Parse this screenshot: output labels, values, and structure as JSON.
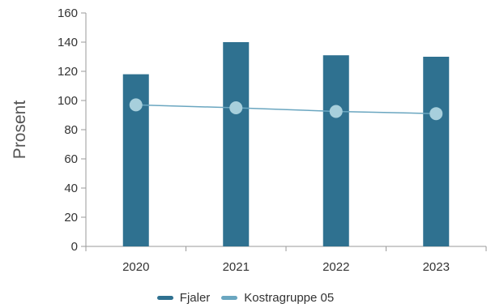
{
  "chart_data": {
    "type": "bar",
    "categories": [
      "2020",
      "2021",
      "2022",
      "2023"
    ],
    "ylabel": "Prosent",
    "ylim": [
      0,
      160
    ],
    "yticks": [
      0,
      20,
      40,
      60,
      80,
      100,
      120,
      140,
      160
    ],
    "grid": false,
    "legend_position": "bottom",
    "series": [
      {
        "name": "Fjaler",
        "kind": "bar",
        "color": "#2f7190",
        "values": [
          118,
          140,
          131,
          130
        ]
      },
      {
        "name": "Kostragruppe 05",
        "kind": "line",
        "color": "#6aa6c0",
        "marker_color": "#a7cfdc",
        "values": [
          97,
          95,
          92.5,
          91
        ]
      }
    ]
  }
}
